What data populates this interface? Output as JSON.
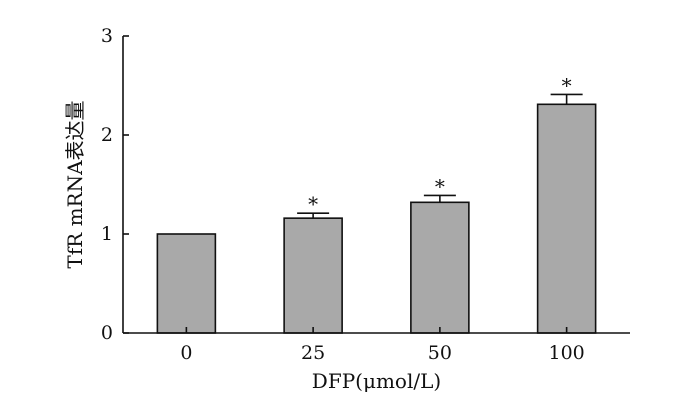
{
  "chart_data": {
    "type": "bar",
    "title": "",
    "xlabel": "DFP(μmol/L)",
    "ylabel": "TfR mRNA表达量",
    "categories": [
      "0",
      "25",
      "50",
      "100"
    ],
    "series": [
      {
        "values": [
          1.0,
          1.16,
          1.32,
          2.31
        ],
        "error": [
          0,
          0.05,
          0.07,
          0.1
        ],
        "annotations": [
          "",
          "*",
          "*",
          "*"
        ]
      }
    ],
    "ylim": [
      0,
      3
    ],
    "yticks": [
      0,
      1,
      2,
      3
    ],
    "yticklabels": [
      "0",
      "1",
      "2",
      "3"
    ],
    "grid": false,
    "legend": "none",
    "bar_color": "#a9a9a9",
    "edge_color": "#111111"
  }
}
